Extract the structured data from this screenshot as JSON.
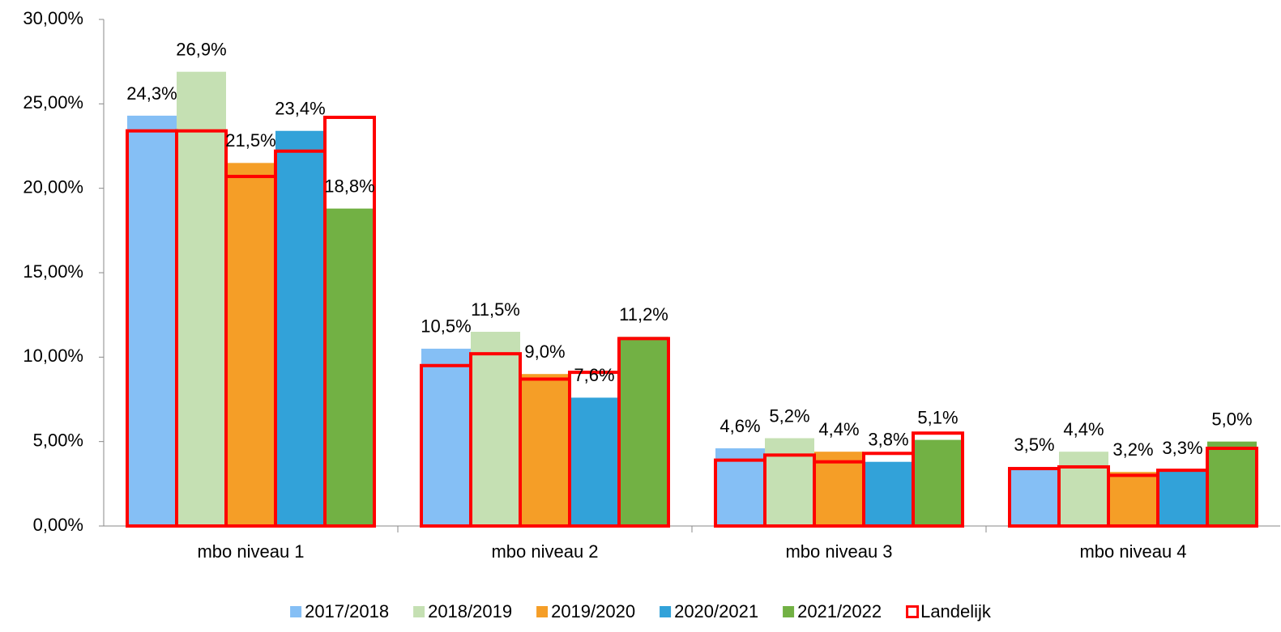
{
  "chart_data": {
    "type": "bar",
    "categories": [
      "mbo niveau 1",
      "mbo niveau 2",
      "mbo niveau 3",
      "mbo niveau 4"
    ],
    "series": [
      {
        "name": "2017/2018",
        "color": "#85bff5",
        "values": [
          24.3,
          10.5,
          4.6,
          3.5
        ],
        "value_labels": [
          "24,3%",
          "10,5%",
          "4,6%",
          "3,5%"
        ]
      },
      {
        "name": "2018/2019",
        "color": "#c5e0b3",
        "values": [
          26.9,
          11.5,
          5.2,
          4.4
        ],
        "value_labels": [
          "26,9%",
          "11,5%",
          "5,2%",
          "4,4%"
        ]
      },
      {
        "name": "2019/2020",
        "color": "#f59e27",
        "values": [
          21.5,
          9.0,
          4.4,
          3.2
        ],
        "value_labels": [
          "21,5%",
          "9,0%",
          "4,4%",
          "3,2%"
        ]
      },
      {
        "name": "2020/2021",
        "color": "#32a2d9",
        "values": [
          23.4,
          7.6,
          3.8,
          3.3
        ],
        "value_labels": [
          "23,4%",
          "7,6%",
          "3,8%",
          "3,3%"
        ]
      },
      {
        "name": "2021/2022",
        "color": "#72b144",
        "values": [
          18.8,
          11.2,
          5.1,
          5.0
        ],
        "value_labels": [
          "18,8%",
          "11,2%",
          "5,1%",
          "5,0%"
        ]
      }
    ],
    "reference": {
      "name": "Landelijk",
      "color": "#ff0000",
      "values": [
        [
          23.4,
          23.4,
          20.7,
          22.2,
          24.2
        ],
        [
          9.5,
          10.2,
          8.7,
          9.1,
          11.1
        ],
        [
          3.9,
          4.2,
          3.8,
          4.3,
          5.5
        ],
        [
          3.4,
          3.5,
          3.0,
          3.3,
          4.6
        ]
      ]
    },
    "ylim": [
      0,
      30
    ],
    "yticks": [
      {
        "value": 0,
        "label": "0,00%"
      },
      {
        "value": 5,
        "label": "5,00%"
      },
      {
        "value": 10,
        "label": "10,00%"
      },
      {
        "value": 15,
        "label": "15,00%"
      },
      {
        "value": 20,
        "label": "20,00%"
      },
      {
        "value": 25,
        "label": "25,00%"
      },
      {
        "value": 30,
        "label": "30,00%"
      }
    ],
    "grid": false,
    "legend": "bottom"
  }
}
